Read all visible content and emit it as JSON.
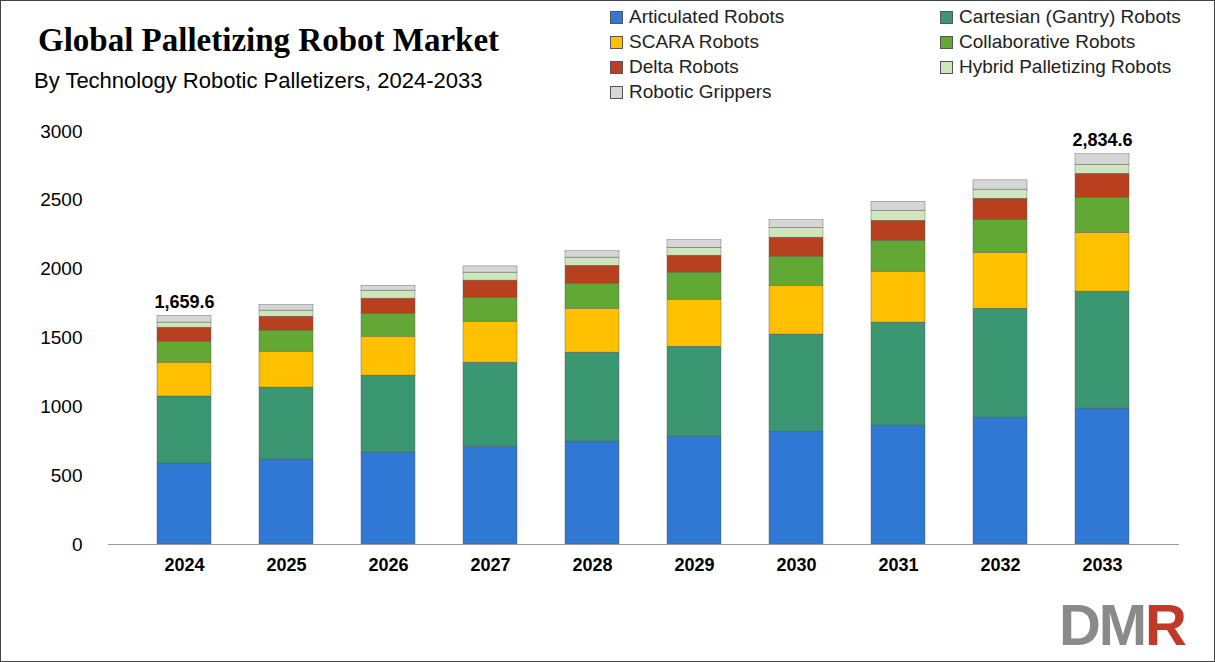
{
  "chart_data": {
    "type": "bar",
    "stacked": true,
    "title": "Global Palletizing Robot Market",
    "subtitle": "By Technology Robotic Palletizers, 2024-2033",
    "watermark": "DMR",
    "categories": [
      "2024",
      "2025",
      "2026",
      "2027",
      "2028",
      "2029",
      "2030",
      "2031",
      "2032",
      "2033"
    ],
    "series": [
      {
        "name": "Articulated Robots",
        "color": "#2f78d4",
        "values": [
          588,
          617,
          668,
          711,
          748,
          784,
          820,
          864,
          922,
          987
        ]
      },
      {
        "name": "Cartesian (Gantry) Robots",
        "color": "#3a9772",
        "values": [
          487,
          523,
          559,
          610,
          646,
          653,
          705,
          748,
          791,
          850
        ]
      },
      {
        "name": "SCARA Robots",
        "color": "#ffc000",
        "values": [
          246,
          261,
          283,
          298,
          319,
          342,
          355,
          370,
          407,
          428
        ]
      },
      {
        "name": "Collaborative Robots",
        "color": "#62a835",
        "values": [
          153,
          153,
          167,
          174,
          182,
          196,
          211,
          225,
          239,
          254
        ]
      },
      {
        "name": "Delta Robots",
        "color": "#b8401e",
        "values": [
          101,
          101,
          109,
          124,
          130,
          123,
          138,
          145,
          153,
          174
        ]
      },
      {
        "name": "Hybrid Palletizing Robots",
        "color": "#cfe6bd",
        "values": [
          37,
          44,
          58,
          58,
          59,
          58,
          72,
          73,
          66,
          66
        ]
      },
      {
        "name": "Robotic Grippers",
        "color": "#d6d6d6",
        "values": [
          47.6,
          41,
          36,
          45,
          46,
          54,
          54,
          65,
          67,
          75.6
        ]
      }
    ],
    "annotations": [
      {
        "x": "2024",
        "value": 1659.6,
        "label": "1,659.6"
      },
      {
        "x": "2033",
        "value": 2834.6,
        "label": "2,834.6"
      }
    ],
    "ylim": [
      0,
      3000
    ],
    "yticks": [
      0,
      500,
      1000,
      1500,
      2000,
      2500,
      3000
    ],
    "grid": false,
    "legend": "top-right"
  }
}
